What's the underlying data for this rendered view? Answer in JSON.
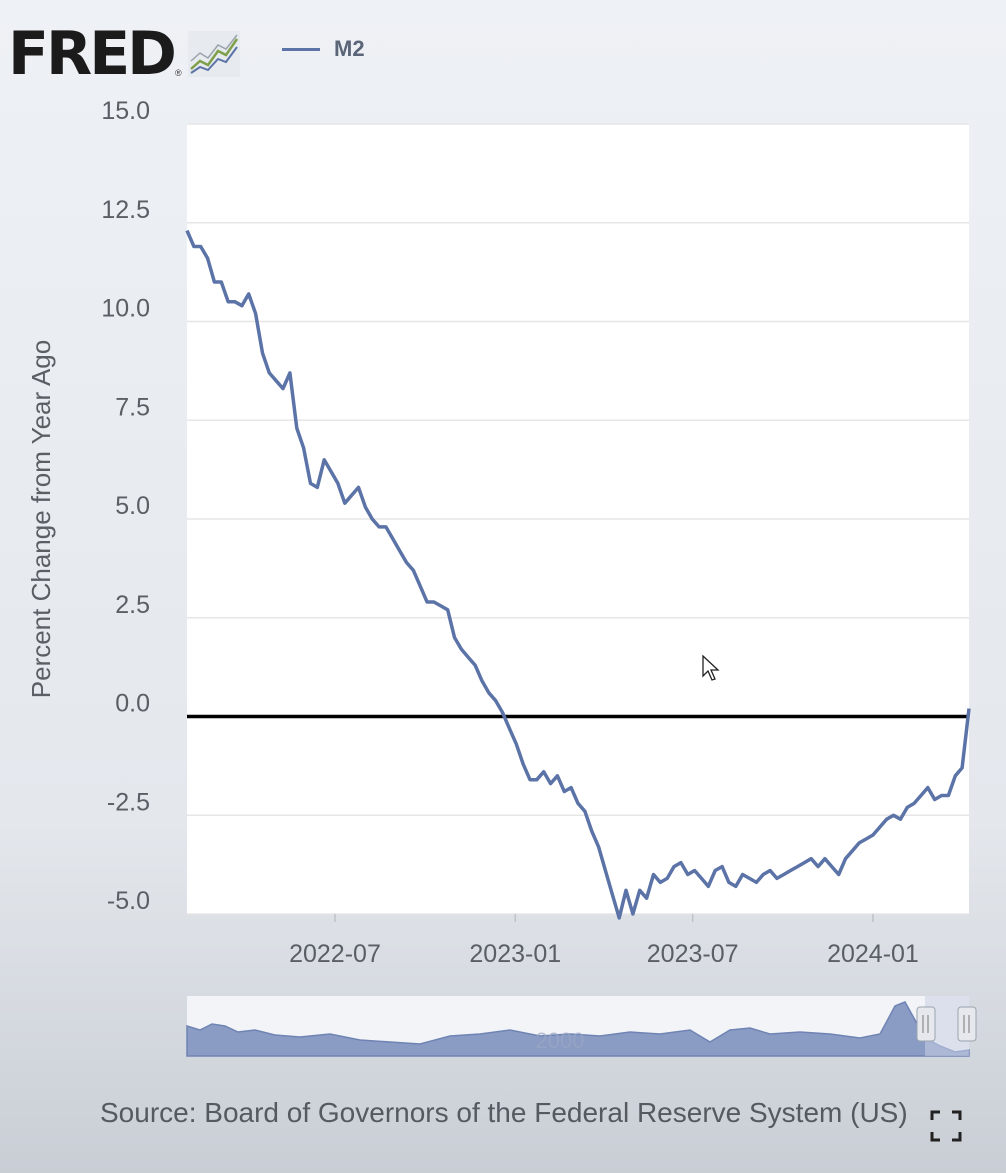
{
  "header": {
    "logo_text": "FRED",
    "logo_reg": "®",
    "logo_icon": "fred-chart-logo-icon"
  },
  "legend": {
    "label": "M2",
    "color": "#5b73a7"
  },
  "source_text": "Source: Board of Governors of the Federal Reserve System (US)",
  "colors": {
    "line": "#5b73a7",
    "zero_line": "#000000",
    "plot_background": "#ffffff",
    "grid": "#e6e6e6",
    "navigator_fill": "#8a9cc4",
    "navigator_selection": "#c8cfe3",
    "handle": "#e6e8ee"
  },
  "chart_data": {
    "type": "line",
    "title": "",
    "xlabel": "",
    "ylabel": "Percent Change from Year Ago",
    "ylim": [
      -5.0,
      15.0
    ],
    "y_ticks": [
      "15.0",
      "12.5",
      "10.0",
      "7.5",
      "5.0",
      "2.5",
      "0.0",
      "-2.5",
      "-5.0"
    ],
    "xlim": [
      "2022-01-31",
      "2024-04-08"
    ],
    "x_ticks": [
      {
        "date": "2022-07-01",
        "label": "2022-07"
      },
      {
        "date": "2023-01-01",
        "label": "2023-01"
      },
      {
        "date": "2023-07-01",
        "label": "2023-07"
      },
      {
        "date": "2024-01-01",
        "label": "2024-01"
      }
    ],
    "zero_line": 0.0,
    "grid": true,
    "legend_position": "top",
    "series": [
      {
        "name": "M2",
        "x": [
          "2022-01-31",
          "2022-02-07",
          "2022-02-14",
          "2022-02-21",
          "2022-02-28",
          "2022-03-07",
          "2022-03-14",
          "2022-03-21",
          "2022-03-28",
          "2022-04-04",
          "2022-04-11",
          "2022-04-18",
          "2022-04-25",
          "2022-05-02",
          "2022-05-09",
          "2022-05-16",
          "2022-05-23",
          "2022-05-30",
          "2022-06-06",
          "2022-06-13",
          "2022-06-20",
          "2022-06-27",
          "2022-07-04",
          "2022-07-11",
          "2022-07-18",
          "2022-07-25",
          "2022-08-01",
          "2022-08-08",
          "2022-08-15",
          "2022-08-22",
          "2022-08-29",
          "2022-09-05",
          "2022-09-12",
          "2022-09-19",
          "2022-09-26",
          "2022-10-03",
          "2022-10-10",
          "2022-10-17",
          "2022-10-24",
          "2022-10-31",
          "2022-11-07",
          "2022-11-14",
          "2022-11-21",
          "2022-11-28",
          "2022-12-05",
          "2022-12-12",
          "2022-12-19",
          "2022-12-26",
          "2023-01-02",
          "2023-01-09",
          "2023-01-16",
          "2023-01-23",
          "2023-01-30",
          "2023-02-06",
          "2023-02-13",
          "2023-02-20",
          "2023-02-27",
          "2023-03-06",
          "2023-03-13",
          "2023-03-20",
          "2023-03-27",
          "2023-04-03",
          "2023-04-10",
          "2023-04-17",
          "2023-04-24",
          "2023-05-01",
          "2023-05-08",
          "2023-05-15",
          "2023-05-22",
          "2023-05-29",
          "2023-06-05",
          "2023-06-12",
          "2023-06-19",
          "2023-06-26",
          "2023-07-03",
          "2023-07-10",
          "2023-07-17",
          "2023-07-24",
          "2023-07-31",
          "2023-08-07",
          "2023-08-14",
          "2023-08-21",
          "2023-08-28",
          "2023-09-04",
          "2023-09-11",
          "2023-09-18",
          "2023-09-25",
          "2023-10-02",
          "2023-10-09",
          "2023-10-16",
          "2023-10-23",
          "2023-10-30",
          "2023-11-06",
          "2023-11-13",
          "2023-11-20",
          "2023-11-27",
          "2023-12-04",
          "2023-12-11",
          "2023-12-18",
          "2023-12-25",
          "2024-01-01",
          "2024-01-08",
          "2024-01-15",
          "2024-01-22",
          "2024-01-29",
          "2024-02-05",
          "2024-02-12",
          "2024-02-19",
          "2024-02-26",
          "2024-03-04",
          "2024-03-11",
          "2024-03-18",
          "2024-03-25",
          "2024-04-01",
          "2024-04-08"
        ],
        "y": [
          12.3,
          11.9,
          11.9,
          11.6,
          11.0,
          11.0,
          10.5,
          10.5,
          10.4,
          10.7,
          10.2,
          9.2,
          8.7,
          8.5,
          8.3,
          8.7,
          7.3,
          6.8,
          5.9,
          5.8,
          6.5,
          6.2,
          5.9,
          5.4,
          5.6,
          5.8,
          5.3,
          5.0,
          4.8,
          4.8,
          4.5,
          4.2,
          3.9,
          3.7,
          3.3,
          2.9,
          2.9,
          2.8,
          2.7,
          2.0,
          1.7,
          1.5,
          1.3,
          0.9,
          0.6,
          0.4,
          0.1,
          -0.3,
          -0.7,
          -1.2,
          -1.6,
          -1.6,
          -1.4,
          -1.7,
          -1.5,
          -1.9,
          -1.8,
          -2.2,
          -2.4,
          -2.9,
          -3.3,
          -3.9,
          -4.5,
          -5.1,
          -4.4,
          -5.0,
          -4.4,
          -4.6,
          -4.0,
          -4.2,
          -4.1,
          -3.8,
          -3.7,
          -4.0,
          -3.9,
          -4.1,
          -4.3,
          -3.9,
          -3.8,
          -4.2,
          -4.3,
          -4.0,
          -4.1,
          -4.2,
          -4.0,
          -3.9,
          -4.1,
          -4.0,
          -3.9,
          -3.8,
          -3.7,
          -3.6,
          -3.8,
          -3.6,
          -3.8,
          -4.0,
          -3.6,
          -3.4,
          -3.2,
          -3.1,
          -3.0,
          -2.8,
          -2.6,
          -2.5,
          -2.6,
          -2.3,
          -2.2,
          -2.0,
          -1.8,
          -2.1,
          -2.0,
          -2.0,
          -1.5,
          -1.3,
          0.2
        ]
      }
    ]
  },
  "navigator": {
    "label": "2000",
    "handles": [
      "range-handle-left",
      "range-handle-right"
    ]
  },
  "cursor_icon": "mouse-pointer-icon",
  "expand_icon": "fullscreen-icon"
}
